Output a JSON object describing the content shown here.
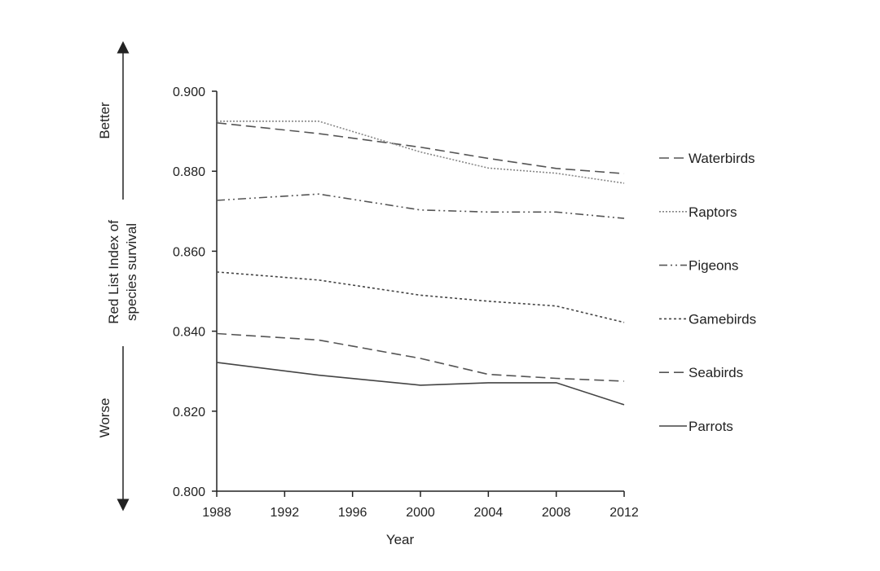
{
  "chart_data": {
    "type": "line",
    "title": "",
    "xlabel": "Year",
    "ylabel": [
      "Red List Index of",
      "species survival"
    ],
    "direction_labels": {
      "top": "Better",
      "bottom": "Worse"
    },
    "xlim": [
      1988,
      2012
    ],
    "ylim": [
      0.8,
      0.9
    ],
    "xticks": [
      1988,
      1992,
      1996,
      2000,
      2004,
      2008,
      2012
    ],
    "yticks": [
      "0.800",
      "0.820",
      "0.840",
      "0.860",
      "0.880",
      "0.900"
    ],
    "grid": false,
    "legend_position": "right",
    "series": [
      {
        "name": "Waterbirds",
        "dash": "12,6",
        "color": "#555555",
        "x": [
          1988,
          1994,
          2000,
          2004,
          2008,
          2012
        ],
        "y": [
          0.8921,
          0.8894,
          0.886,
          0.8832,
          0.8807,
          0.8794
        ]
      },
      {
        "name": "Raptors",
        "dash": "2,2",
        "color": "#888888",
        "x": [
          1988,
          1994,
          2000,
          2004,
          2008,
          2012
        ],
        "y": [
          0.8925,
          0.8925,
          0.8848,
          0.8808,
          0.8795,
          0.877
        ]
      },
      {
        "name": "Pigeons",
        "dash": "10,4,2,4,2,4",
        "color": "#555555",
        "x": [
          1988,
          1994,
          2000,
          2004,
          2008,
          2012
        ],
        "y": [
          0.8727,
          0.8743,
          0.8703,
          0.8698,
          0.8698,
          0.8682
        ]
      },
      {
        "name": "Gamebirds",
        "dash": "3,3",
        "color": "#444444",
        "x": [
          1988,
          1994,
          2000,
          2004,
          2008,
          2012
        ],
        "y": [
          0.8548,
          0.8528,
          0.849,
          0.8475,
          0.8463,
          0.8422
        ]
      },
      {
        "name": "Seabirds",
        "dash": "12,6",
        "color": "#555555",
        "x": [
          1988,
          1994,
          2000,
          2004,
          2008,
          2012
        ],
        "y": [
          0.8394,
          0.8378,
          0.8332,
          0.8292,
          0.8282,
          0.8275
        ]
      },
      {
        "name": "Parrots",
        "dash": "",
        "color": "#444444",
        "x": [
          1988,
          1994,
          2000,
          2004,
          2008,
          2012
        ],
        "y": [
          0.8322,
          0.829,
          0.8265,
          0.8271,
          0.8271,
          0.8216
        ]
      }
    ]
  }
}
